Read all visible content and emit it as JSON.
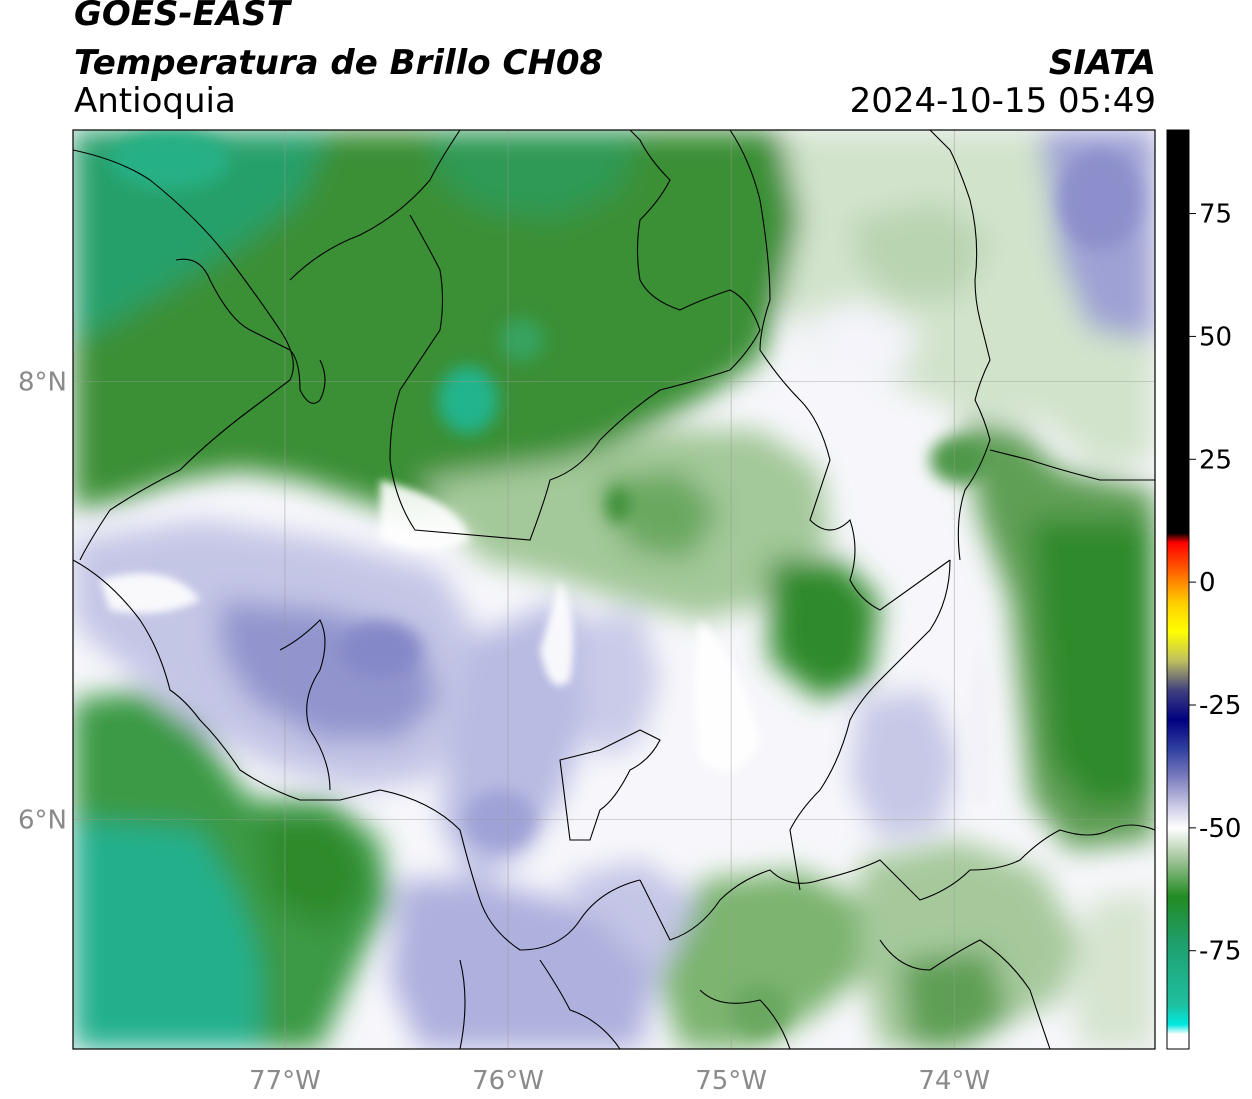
{
  "header": {
    "satellite": "GOES-EAST",
    "product": "Temperatura de Brillo CH08",
    "region": "Antioquia",
    "organization": "SIATA",
    "timestamp": "2024-10-15 05:49"
  },
  "map": {
    "lon_range": [
      -77.95,
      -73.1
    ],
    "lat_range": [
      4.95,
      9.15
    ],
    "lon_ticks": [
      {
        "value": -77,
        "label": "77°W"
      },
      {
        "value": -76,
        "label": "76°W"
      },
      {
        "value": -75,
        "label": "75°W"
      },
      {
        "value": -74,
        "label": "74°W"
      }
    ],
    "lat_ticks": [
      {
        "value": 8,
        "label": "8°N"
      },
      {
        "value": 6,
        "label": "6°N"
      }
    ],
    "gridlines": true
  },
  "colorbar": {
    "range": [
      -95,
      92
    ],
    "ticks": [
      {
        "value": 75,
        "label": "75"
      },
      {
        "value": 50,
        "label": "50"
      },
      {
        "value": 25,
        "label": "25"
      },
      {
        "value": 0,
        "label": "0"
      },
      {
        "value": -25,
        "label": "-25"
      },
      {
        "value": -50,
        "label": "-50"
      },
      {
        "value": -75,
        "label": "-75"
      }
    ],
    "stops": [
      {
        "value": 92,
        "color": "#000000"
      },
      {
        "value": 10,
        "color": "#000000"
      },
      {
        "value": 8,
        "color": "#ff0000"
      },
      {
        "value": 2,
        "color": "#ff6600"
      },
      {
        "value": -4,
        "color": "#ffcc00"
      },
      {
        "value": -10,
        "color": "#ffff00"
      },
      {
        "value": -16,
        "color": "#bfbf60"
      },
      {
        "value": -22,
        "color": "#404080"
      },
      {
        "value": -28,
        "color": "#000080"
      },
      {
        "value": -34,
        "color": "#3040a0"
      },
      {
        "value": -40,
        "color": "#8080c0"
      },
      {
        "value": -46,
        "color": "#d0d0e8"
      },
      {
        "value": -50,
        "color": "#ffffff"
      },
      {
        "value": -56,
        "color": "#a8c8a0"
      },
      {
        "value": -64,
        "color": "#228b22"
      },
      {
        "value": -74,
        "color": "#1fa070"
      },
      {
        "value": -86,
        "color": "#1ec0a0"
      },
      {
        "value": -90,
        "color": "#00e8e0"
      },
      {
        "value": -92,
        "color": "#ffffff"
      },
      {
        "value": -95,
        "color": "#ffffff"
      }
    ]
  },
  "colors": {
    "deep_green": "#2f8a2a",
    "teal": "#24b48c",
    "mid_green": "#6fae5f",
    "light_green": "#c4dcbc",
    "white": "#f7f7fb",
    "lavender": "#c0c2e4",
    "periwinkle": "#8f92cc"
  }
}
